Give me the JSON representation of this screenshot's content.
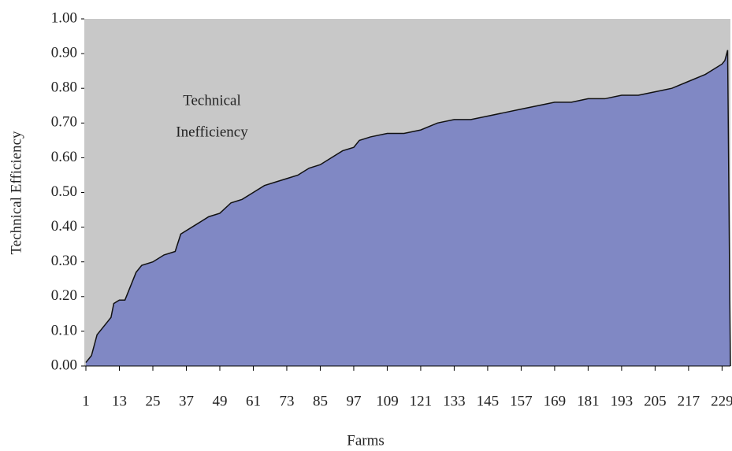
{
  "chart_data": {
    "type": "area",
    "x_label": "Farms",
    "y_label": "Technical Efficiency",
    "annotation": [
      "Technical",
      "Inefficiency"
    ],
    "x": [
      1,
      3,
      5,
      9,
      10,
      11,
      13,
      15,
      17,
      19,
      21,
      25,
      29,
      33,
      35,
      41,
      45,
      49,
      53,
      57,
      61,
      65,
      69,
      73,
      77,
      81,
      85,
      89,
      93,
      97,
      99,
      103,
      109,
      115,
      121,
      127,
      133,
      139,
      145,
      151,
      157,
      163,
      169,
      175,
      181,
      187,
      193,
      199,
      205,
      211,
      217,
      223,
      227,
      229,
      230,
      231,
      232
    ],
    "values": [
      0.01,
      0.03,
      0.09,
      0.13,
      0.14,
      0.18,
      0.19,
      0.19,
      0.23,
      0.27,
      0.29,
      0.3,
      0.32,
      0.33,
      0.38,
      0.41,
      0.43,
      0.44,
      0.47,
      0.48,
      0.5,
      0.52,
      0.53,
      0.54,
      0.55,
      0.57,
      0.58,
      0.6,
      0.62,
      0.63,
      0.65,
      0.66,
      0.67,
      0.67,
      0.68,
      0.7,
      0.71,
      0.71,
      0.72,
      0.73,
      0.74,
      0.75,
      0.76,
      0.76,
      0.77,
      0.77,
      0.78,
      0.78,
      0.79,
      0.8,
      0.82,
      0.84,
      0.86,
      0.87,
      0.88,
      0.91,
      0.0
    ],
    "fill_color": "#8088c4",
    "line_color": "#111111",
    "background_color": "#c8c8c8",
    "xlim": [
      1,
      232
    ],
    "xticks": [
      1,
      13,
      25,
      37,
      49,
      61,
      73,
      85,
      97,
      109,
      121,
      133,
      145,
      157,
      169,
      181,
      193,
      205,
      217,
      229
    ],
    "ylim": [
      0,
      1
    ],
    "yticks": [
      {
        "value": 0,
        "label": "0.00"
      },
      {
        "value": 0.1,
        "label": "0.10"
      },
      {
        "value": 0.2,
        "label": "0.20"
      },
      {
        "value": 0.3,
        "label": "0.30"
      },
      {
        "value": 0.4,
        "label": "0.40"
      },
      {
        "value": 0.5,
        "label": "0.50"
      },
      {
        "value": 0.6,
        "label": "0.60"
      },
      {
        "value": 0.7,
        "label": "0.70"
      },
      {
        "value": 0.8,
        "label": "0.80"
      },
      {
        "value": 0.9,
        "label": "0.90"
      },
      {
        "value": 1,
        "label": "1.00"
      }
    ]
  }
}
